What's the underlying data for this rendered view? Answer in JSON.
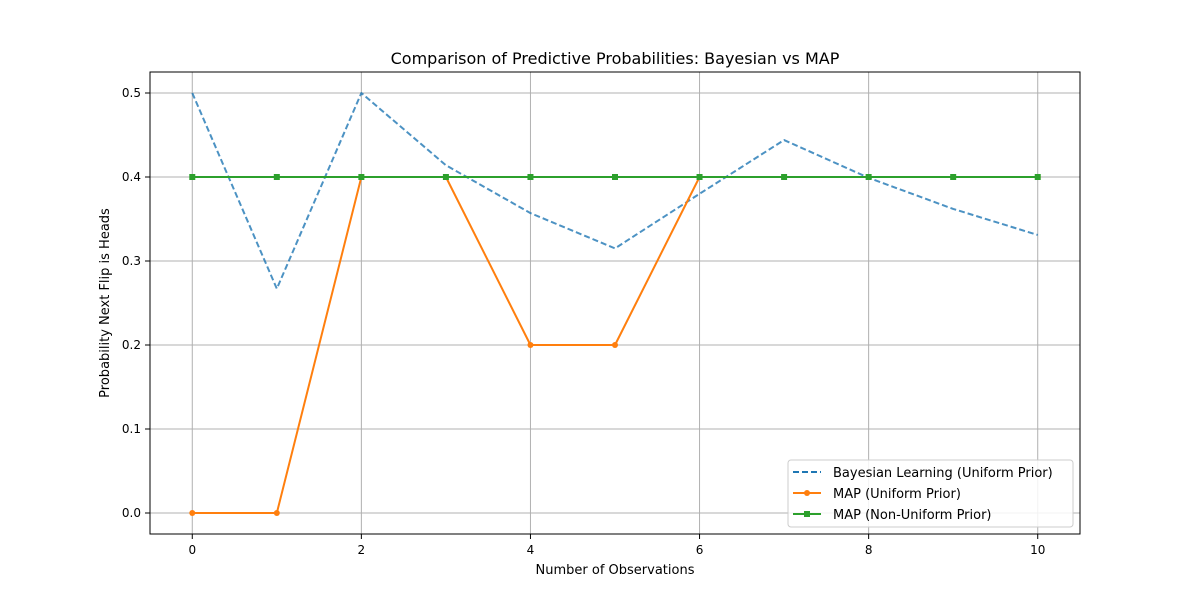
{
  "chart_data": {
    "type": "line",
    "title": "Comparison of Predictive Probabilities: Bayesian vs MAP",
    "xlabel": "Number of Observations",
    "ylabel": "Probability Next Flip is Heads",
    "xlim": [
      -0.5,
      10.5
    ],
    "ylim": [
      -0.025,
      0.525
    ],
    "x": [
      0,
      1,
      2,
      3,
      4,
      5,
      6,
      7,
      8,
      9,
      10
    ],
    "xticks": [
      0,
      2,
      4,
      6,
      8,
      10
    ],
    "yticks": [
      0.0,
      0.1,
      0.2,
      0.3,
      0.4,
      0.5
    ],
    "xtick_labels": [
      "0",
      "2",
      "4",
      "6",
      "8",
      "10"
    ],
    "ytick_labels": [
      "0.0",
      "0.1",
      "0.2",
      "0.3",
      "0.4",
      "0.5"
    ],
    "grid": true,
    "legend_position": "bottom-right",
    "series": [
      {
        "name": "Bayesian Learning (Uniform Prior)",
        "values": [
          0.5,
          0.267,
          0.5,
          0.414,
          0.357,
          0.315,
          0.38,
          0.444,
          0.399,
          0.362,
          0.331
        ],
        "color": "#1f77b4",
        "style": "dashed",
        "marker": "none"
      },
      {
        "name": "MAP (Uniform Prior)",
        "values": [
          0.0,
          0.0,
          0.4,
          0.4,
          0.2,
          0.2,
          0.4,
          0.4,
          0.4,
          0.4,
          0.4
        ],
        "color": "#ff7f0e",
        "style": "solid",
        "marker": "circle"
      },
      {
        "name": "MAP (Non-Uniform Prior)",
        "values": [
          0.4,
          0.4,
          0.4,
          0.4,
          0.4,
          0.4,
          0.4,
          0.4,
          0.4,
          0.4,
          0.4
        ],
        "color": "#2ca02c",
        "style": "solid",
        "marker": "square"
      }
    ]
  }
}
